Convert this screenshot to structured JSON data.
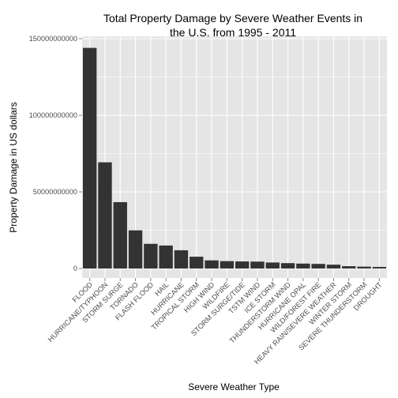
{
  "chart_data": {
    "type": "bar",
    "title": "Total Property Damage by Severe Weather Events in the U.S. from 1995 - 2011",
    "title_lines": [
      "Total Property Damage by Severe Weather Events in",
      "the U.S. from 1995 - 2011"
    ],
    "xlabel": "Severe Weather Type",
    "ylabel": "Property Damage in US dollars",
    "categories": [
      "FLOOD",
      "HURRICANE/TYPHOON",
      "STORM SURGE",
      "TORNADO",
      "FLASH FLOOD",
      "HAIL",
      "HURRICANE",
      "TROPICAL STORM",
      "HIGH WIND",
      "WILDFIRE",
      "STORM SURGE/TIDE",
      "TSTM WIND",
      "ICE STORM",
      "THUNDERSTORM WIND",
      "HURRICANE OPAL",
      "WILD/FOREST FIRE",
      "HEAVY RAIN/SEVERE WEATHER",
      "WINTER STORM",
      "SEVERE THUNDERSTORM",
      "DROUGHT"
    ],
    "values": [
      144000000000,
      69300000000,
      43300000000,
      24900000000,
      16100000000,
      15000000000,
      11900000000,
      7700000000,
      5300000000,
      4800000000,
      4600000000,
      4500000000,
      3900000000,
      3500000000,
      3200000000,
      3000000000,
      2500000000,
      1500000000,
      1200000000,
      1000000000
    ],
    "ylim": [
      0,
      150000000000
    ],
    "yticks": [
      0,
      50000000000,
      100000000000,
      150000000000
    ],
    "ytick_labels": [
      "0",
      "50000000000",
      "100000000000",
      "150000000000"
    ],
    "grid": true,
    "legend": "none",
    "colors": {
      "panel": "#e5e5e5",
      "grid": "#ffffff",
      "bar": "#333333",
      "tick_text": "#4d4d4d"
    }
  }
}
